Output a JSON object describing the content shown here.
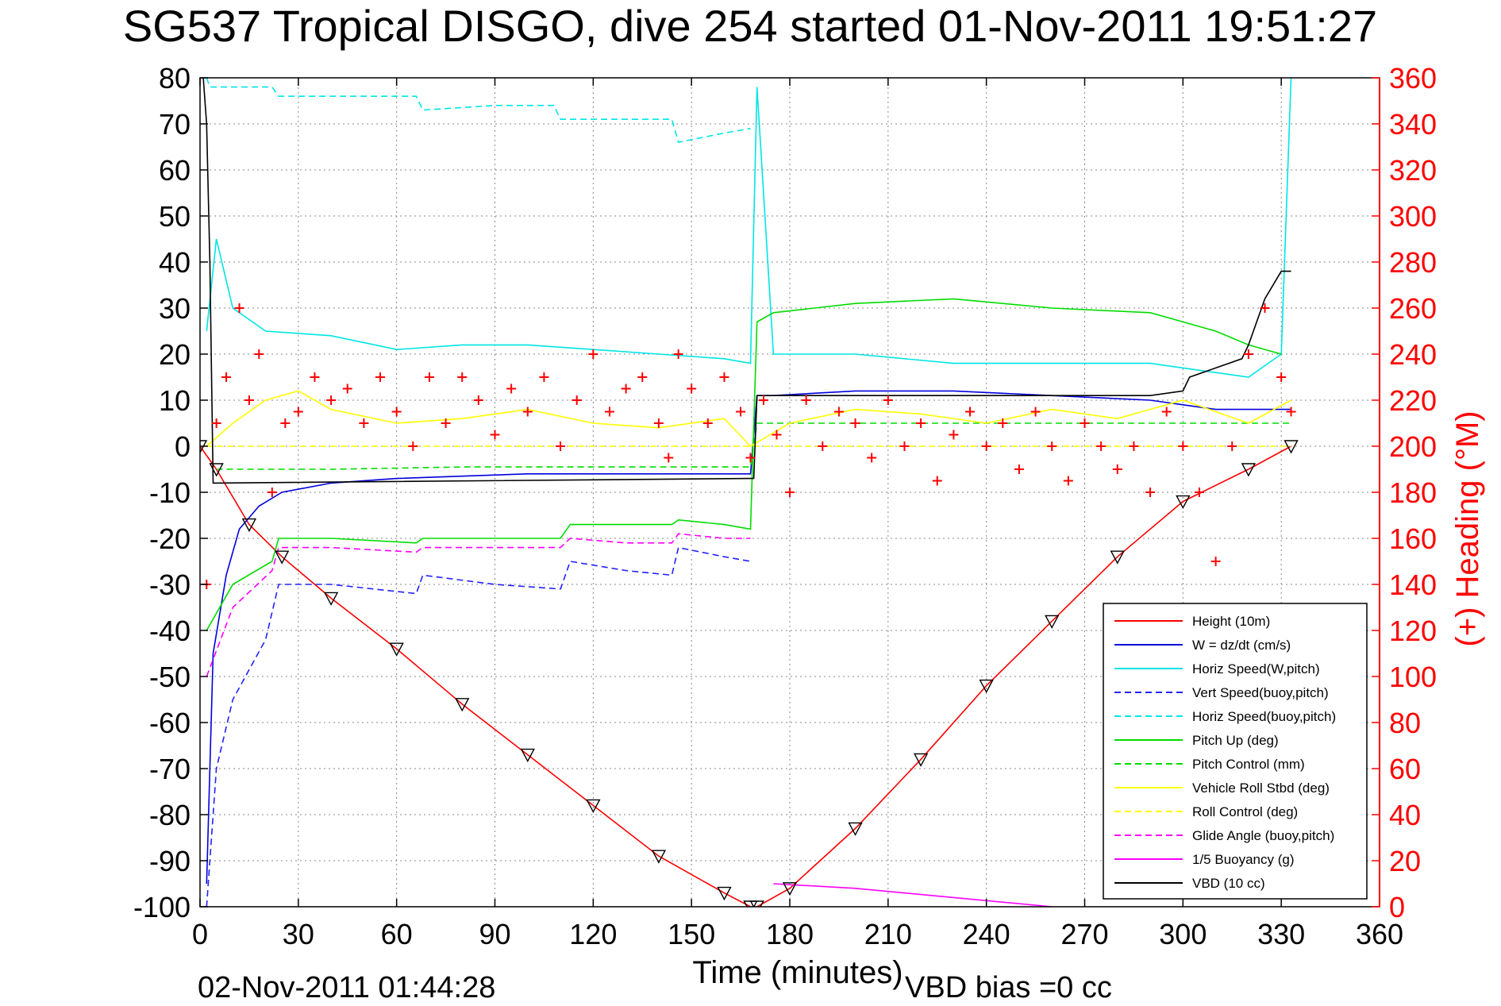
{
  "chart_data": {
    "type": "line",
    "title": "SG537 Tropical DISGO, dive 254 started 01-Nov-2011 19:51:27",
    "xlabel": "Time (minutes)",
    "ylabel": "",
    "y2label": "(+) Heading (°M)",
    "footer_left": "02-Nov-2011 01:44:28",
    "footer_right": "VBD bias =0 cc",
    "xlim": [
      0,
      360
    ],
    "ylim": [
      -100,
      80
    ],
    "y2lim": [
      0,
      360
    ],
    "xticks": [
      0,
      30,
      60,
      90,
      120,
      150,
      180,
      210,
      240,
      270,
      300,
      330,
      360
    ],
    "yticks": [
      -100,
      -90,
      -80,
      -70,
      -60,
      -50,
      -40,
      -30,
      -20,
      -10,
      0,
      10,
      20,
      30,
      40,
      50,
      60,
      70,
      80
    ],
    "y2ticks": [
      0,
      20,
      40,
      60,
      80,
      100,
      120,
      140,
      160,
      180,
      200,
      220,
      240,
      260,
      280,
      300,
      320,
      340,
      360
    ],
    "grid": true,
    "legend_position": "bottom-right",
    "colors": {
      "heading_axis": "#ff0000",
      "height": "#ff0000",
      "w": "#0000dd",
      "horiz_speed": "#00e5e5",
      "pitch": "#00dd00",
      "roll": "#ffff00",
      "glide": "#ff00ff",
      "vbd": "#000000"
    },
    "series": [
      {
        "name": "Height (10m)",
        "color": "#ff0000",
        "dash": false,
        "x": [
          0,
          5,
          15,
          25,
          40,
          60,
          80,
          100,
          120,
          140,
          160,
          168,
          170,
          180,
          200,
          220,
          240,
          260,
          280,
          300,
          320,
          333
        ],
        "y": [
          0,
          -5,
          -17,
          -24,
          -33,
          -44,
          -56,
          -67,
          -78,
          -89,
          -97,
          -100,
          -100,
          -96,
          -83,
          -68,
          -52,
          -38,
          -24,
          -12,
          -5,
          0
        ]
      },
      {
        "name": "W = dz/dt (cm/s)",
        "color": "#0000dd",
        "dash": false,
        "x": [
          2,
          4,
          8,
          12,
          18,
          25,
          40,
          60,
          80,
          100,
          110,
          113,
          130,
          144,
          146,
          160,
          168,
          170,
          175,
          200,
          230,
          260,
          290,
          300,
          310,
          320,
          330,
          333
        ],
        "y": [
          -95,
          -45,
          -28,
          -18,
          -13,
          -10,
          -8,
          -7,
          -6.5,
          -6,
          -6,
          -6,
          -6,
          -6,
          -6,
          -6,
          -6,
          11,
          11,
          12,
          12,
          11,
          10,
          9,
          8,
          8,
          8,
          8
        ]
      },
      {
        "name": "Horiz Speed(W,pitch)",
        "color": "#00e5e5",
        "dash": false,
        "x": [
          2,
          5,
          10,
          20,
          40,
          60,
          80,
          100,
          120,
          140,
          160,
          168,
          170,
          175,
          200,
          230,
          260,
          290,
          300,
          310,
          320,
          330,
          333
        ],
        "y": [
          25,
          45,
          30,
          25,
          24,
          21,
          22,
          22,
          21,
          20,
          19,
          18,
          78,
          20,
          20,
          18,
          18,
          18,
          17,
          16,
          15,
          20,
          80
        ]
      },
      {
        "name": "Vert Speed(buoy,pitch)",
        "color": "#2222ff",
        "dash": true,
        "x": [
          2,
          5,
          10,
          20,
          24,
          40,
          66,
          68,
          90,
          110,
          113,
          130,
          144,
          146,
          160,
          168
        ],
        "y": [
          -100,
          -70,
          -55,
          -42,
          -30,
          -30,
          -32,
          -28,
          -30,
          -31,
          -25,
          -27,
          -28,
          -22,
          -24,
          -25
        ]
      },
      {
        "name": "Horiz Speed(buoy,pitch)",
        "color": "#00e5e5",
        "dash": true,
        "x": [
          2,
          3,
          22,
          24,
          40,
          66,
          68,
          90,
          108,
          110,
          113,
          130,
          144,
          146,
          160,
          168
        ],
        "y": [
          80,
          78,
          78,
          76,
          76,
          76,
          73,
          74,
          74,
          71,
          71,
          71,
          71,
          66,
          68,
          69
        ]
      },
      {
        "name": "Pitch Up (deg)",
        "color": "#00dd00",
        "dash": false,
        "x": [
          2,
          10,
          22,
          24,
          40,
          66,
          68,
          90,
          110,
          113,
          130,
          144,
          146,
          160,
          168,
          170,
          175,
          200,
          230,
          260,
          290,
          300,
          310,
          320,
          330
        ],
        "y": [
          -40,
          -30,
          -25,
          -20,
          -20,
          -21,
          -20,
          -20,
          -20,
          -17,
          -17,
          -17,
          -16,
          -17,
          -18,
          27,
          29,
          31,
          32,
          30,
          29,
          27,
          25,
          22,
          20
        ]
      },
      {
        "name": "Pitch Control (mm)",
        "color": "#00dd00",
        "dash": true,
        "x": [
          5,
          40,
          80,
          120,
          168,
          170,
          210,
          250,
          290,
          333
        ],
        "y": [
          -5,
          -5,
          -4.5,
          -4.5,
          -4.5,
          5,
          5,
          5,
          5,
          5
        ]
      },
      {
        "name": "Vehicle Roll Stbd (deg)",
        "color": "#ffff00",
        "dash": false,
        "x": [
          2,
          10,
          20,
          30,
          40,
          60,
          80,
          100,
          120,
          140,
          160,
          168,
          180,
          200,
          220,
          240,
          260,
          280,
          300,
          320,
          333
        ],
        "y": [
          0,
          5,
          10,
          12,
          8,
          5,
          6,
          8,
          5,
          4,
          6,
          0,
          5,
          8,
          7,
          5,
          8,
          6,
          10,
          5,
          10
        ]
      },
      {
        "name": "Roll Control (deg)",
        "color": "#ffff00",
        "dash": true,
        "x": [
          2,
          60,
          120,
          168,
          170,
          240,
          300,
          333
        ],
        "y": [
          0,
          0,
          0,
          0,
          0,
          0,
          0,
          0
        ]
      },
      {
        "name": "Glide Angle (buoy,pitch)",
        "color": "#ff00ff",
        "dash": true,
        "x": [
          2,
          10,
          22,
          24,
          40,
          66,
          68,
          90,
          110,
          113,
          130,
          144,
          146,
          160,
          168
        ],
        "y": [
          -50,
          -35,
          -27,
          -22,
          -22,
          -23,
          -22,
          -22,
          -22,
          -20,
          -21,
          -21,
          -19,
          -20,
          -20
        ]
      },
      {
        "name": "1/5 Buoyancy (g)",
        "color": "#ff00ff",
        "dash": false,
        "x": [
          175,
          200,
          230,
          260,
          290,
          300,
          310,
          320,
          330
        ],
        "y": [
          -95,
          -96,
          -98,
          -100,
          -102,
          -101,
          -102,
          -101,
          -102
        ]
      },
      {
        "name": "VBD (10 cc)",
        "color": "#000000",
        "dash": false,
        "x": [
          1,
          2,
          3,
          4,
          168,
          169,
          170,
          290,
          300,
          302,
          318,
          320,
          325,
          330,
          333
        ],
        "y": [
          80,
          70,
          40,
          -8,
          -7,
          -7,
          11,
          11,
          12,
          15,
          19,
          22,
          32,
          38,
          38
        ]
      }
    ],
    "heading": {
      "name": "Heading",
      "color": "#ff0000",
      "marker": "+",
      "axis": "right",
      "x": [
        2,
        5,
        8,
        12,
        15,
        18,
        22,
        26,
        30,
        35,
        40,
        45,
        50,
        55,
        60,
        65,
        70,
        75,
        80,
        85,
        90,
        95,
        100,
        105,
        110,
        115,
        120,
        125,
        130,
        135,
        140,
        143,
        146,
        150,
        155,
        160,
        165,
        168,
        172,
        176,
        180,
        185,
        190,
        195,
        200,
        205,
        210,
        215,
        220,
        225,
        230,
        235,
        240,
        245,
        250,
        255,
        260,
        265,
        270,
        275,
        280,
        285,
        290,
        295,
        300,
        305,
        310,
        315,
        320,
        325,
        330,
        333
      ],
      "y": [
        140,
        210,
        230,
        260,
        220,
        240,
        180,
        210,
        215,
        230,
        220,
        225,
        210,
        230,
        215,
        200,
        230,
        210,
        230,
        220,
        205,
        225,
        215,
        230,
        200,
        220,
        240,
        215,
        225,
        230,
        210,
        195,
        240,
        225,
        210,
        230,
        215,
        195,
        220,
        205,
        180,
        220,
        200,
        215,
        210,
        195,
        220,
        200,
        210,
        185,
        205,
        215,
        200,
        210,
        190,
        215,
        200,
        185,
        210,
        200,
        190,
        200,
        180,
        215,
        200,
        180,
        150,
        200,
        240,
        260,
        230,
        215
      ]
    }
  }
}
